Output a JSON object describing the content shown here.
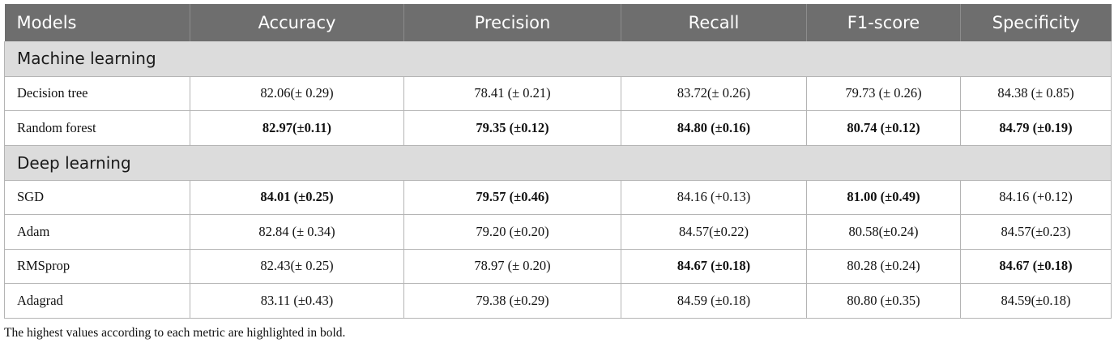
{
  "table": {
    "headers": [
      "Models",
      "Accuracy",
      "Precision",
      "Recall",
      "F1-score",
      "Specificity"
    ],
    "sections": [
      {
        "title": "Machine learning",
        "rows": [
          {
            "cells": [
              "Decision tree",
              "82.06(± 0.29)",
              "78.41 (± 0.21)",
              "83.72(± 0.26)",
              "79.73 (± 0.26)",
              "84.38 (± 0.85)"
            ],
            "bold": [
              false,
              false,
              false,
              false,
              false,
              false
            ]
          },
          {
            "cells": [
              "Random forest",
              "82.97(±0.11)",
              "79.35 (±0.12)",
              "84.80 (±0.16)",
              "80.74 (±0.12)",
              "84.79 (±0.19)"
            ],
            "bold": [
              false,
              true,
              true,
              true,
              true,
              true
            ]
          }
        ]
      },
      {
        "title": "Deep learning",
        "rows": [
          {
            "cells": [
              "SGD",
              "84.01 (±0.25)",
              "79.57 (±0.46)",
              "84.16 (+0.13)",
              "81.00 (±0.49)",
              "84.16 (+0.12)"
            ],
            "bold": [
              false,
              true,
              true,
              false,
              true,
              false
            ]
          },
          {
            "cells": [
              "Adam",
              "82.84 (± 0.34)",
              "79.20 (±0.20)",
              "84.57(±0.22)",
              "80.58(±0.24)",
              "84.57(±0.23)"
            ],
            "bold": [
              false,
              false,
              false,
              false,
              false,
              false
            ]
          },
          {
            "cells": [
              "RMSprop",
              "82.43(± 0.25)",
              "78.97 (± 0.20)",
              "84.67 (±0.18)",
              "80.28 (±0.24)",
              "84.67 (±0.18)"
            ],
            "bold": [
              false,
              false,
              false,
              true,
              false,
              true
            ]
          },
          {
            "cells": [
              "Adagrad",
              "83.11 (±0.43)",
              "79.38 (±0.29)",
              "84.59 (±0.18)",
              "80.80 (±0.35)",
              "84.59(±0.18)"
            ],
            "bold": [
              false,
              false,
              false,
              false,
              false,
              false
            ]
          }
        ]
      }
    ]
  },
  "footnote": "The highest values according to each metric are highlighted in bold."
}
